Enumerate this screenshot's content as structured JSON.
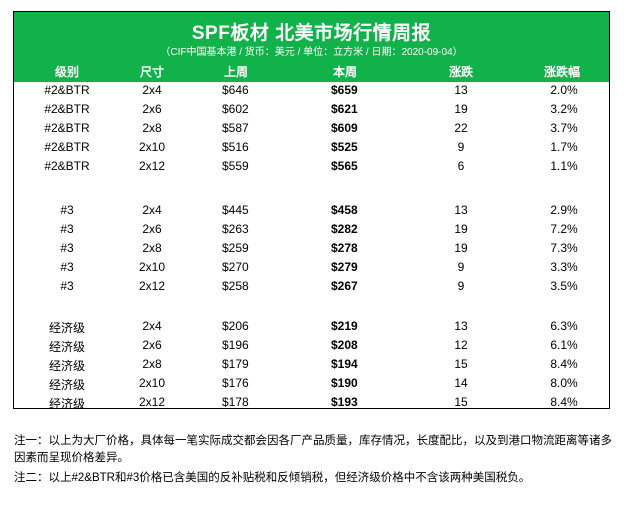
{
  "header": {
    "title": "SPF板材 北美市场行情周报",
    "subtitle": "（CIF中国基本港 / 货币：美元 / 单位：立方米 / 日期：2020-09-04）"
  },
  "columns": {
    "grade": "级别",
    "size": "尺寸",
    "last_week": "上周",
    "this_week": "本周",
    "change": "涨跌",
    "change_pct": "涨跌幅"
  },
  "groups": [
    {
      "rows": [
        {
          "grade": "#2&BTR",
          "size": "2x4",
          "last": "$646",
          "this": "$659",
          "chg": "13",
          "pct": "2.0%"
        },
        {
          "grade": "#2&BTR",
          "size": "2x6",
          "last": "$602",
          "this": "$621",
          "chg": "19",
          "pct": "3.2%"
        },
        {
          "grade": "#2&BTR",
          "size": "2x8",
          "last": "$587",
          "this": "$609",
          "chg": "22",
          "pct": "3.7%"
        },
        {
          "grade": "#2&BTR",
          "size": "2x10",
          "last": "$516",
          "this": "$525",
          "chg": "9",
          "pct": "1.7%"
        },
        {
          "grade": "#2&BTR",
          "size": "2x12",
          "last": "$559",
          "this": "$565",
          "chg": "6",
          "pct": "1.1%"
        }
      ]
    },
    {
      "rows": [
        {
          "grade": "#3",
          "size": "2x4",
          "last": "$445",
          "this": "$458",
          "chg": "13",
          "pct": "2.9%"
        },
        {
          "grade": "#3",
          "size": "2x6",
          "last": "$263",
          "this": "$282",
          "chg": "19",
          "pct": "7.2%"
        },
        {
          "grade": "#3",
          "size": "2x8",
          "last": "$259",
          "this": "$278",
          "chg": "19",
          "pct": "7.3%"
        },
        {
          "grade": "#3",
          "size": "2x10",
          "last": "$270",
          "this": "$279",
          "chg": "9",
          "pct": "3.3%"
        },
        {
          "grade": "#3",
          "size": "2x12",
          "last": "$258",
          "this": "$267",
          "chg": "9",
          "pct": "3.5%"
        }
      ]
    },
    {
      "rows": [
        {
          "grade": "经济级",
          "size": "2x4",
          "last": "$206",
          "this": "$219",
          "chg": "13",
          "pct": "6.3%"
        },
        {
          "grade": "经济级",
          "size": "2x6",
          "last": "$196",
          "this": "$208",
          "chg": "12",
          "pct": "6.1%"
        },
        {
          "grade": "经济级",
          "size": "2x8",
          "last": "$179",
          "this": "$194",
          "chg": "15",
          "pct": "8.4%"
        },
        {
          "grade": "经济级",
          "size": "2x10",
          "last": "$176",
          "this": "$190",
          "chg": "14",
          "pct": "8.0%"
        },
        {
          "grade": "经济级",
          "size": "2x12",
          "last": "$178",
          "this": "$193",
          "chg": "15",
          "pct": "8.4%"
        }
      ]
    }
  ],
  "notes": [
    "注一：以上为大厂价格，具体每一笔实际成交都会因各厂产品质量，库存情况，长度配比，以及到港口物流距离等诸多因素而呈现价格差异。",
    "注二：以上#2&BTR和#3价格已含美国的反补贴税和反倾销税，但经济级价格中不含该两种美国税负。"
  ],
  "colors": {
    "header_bg": "#12b24a",
    "header_text": "#ffffff"
  }
}
